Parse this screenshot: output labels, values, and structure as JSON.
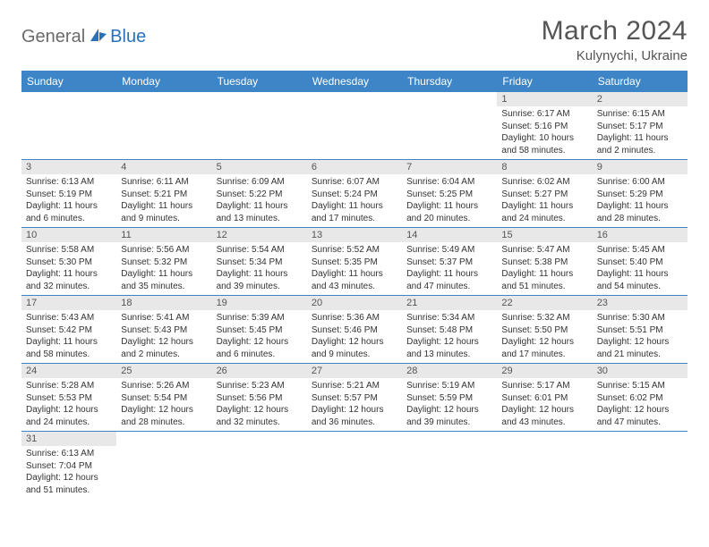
{
  "brand": {
    "name_a": "General",
    "name_b": "Blue"
  },
  "header": {
    "title": "March 2024",
    "location": "Kulynychi, Ukraine"
  },
  "colors": {
    "header_bg": "#3d85c6",
    "header_fg": "#ffffff",
    "rule": "#3d85c6",
    "daynum_bg": "#e8e8e8",
    "text": "#555555"
  },
  "weekdays": [
    "Sunday",
    "Monday",
    "Tuesday",
    "Wednesday",
    "Thursday",
    "Friday",
    "Saturday"
  ],
  "weeks": [
    [
      null,
      null,
      null,
      null,
      null,
      {
        "n": "1",
        "sr": "Sunrise: 6:17 AM",
        "ss": "Sunset: 5:16 PM",
        "dl1": "Daylight: 10 hours",
        "dl2": "and 58 minutes."
      },
      {
        "n": "2",
        "sr": "Sunrise: 6:15 AM",
        "ss": "Sunset: 5:17 PM",
        "dl1": "Daylight: 11 hours",
        "dl2": "and 2 minutes."
      }
    ],
    [
      {
        "n": "3",
        "sr": "Sunrise: 6:13 AM",
        "ss": "Sunset: 5:19 PM",
        "dl1": "Daylight: 11 hours",
        "dl2": "and 6 minutes."
      },
      {
        "n": "4",
        "sr": "Sunrise: 6:11 AM",
        "ss": "Sunset: 5:21 PM",
        "dl1": "Daylight: 11 hours",
        "dl2": "and 9 minutes."
      },
      {
        "n": "5",
        "sr": "Sunrise: 6:09 AM",
        "ss": "Sunset: 5:22 PM",
        "dl1": "Daylight: 11 hours",
        "dl2": "and 13 minutes."
      },
      {
        "n": "6",
        "sr": "Sunrise: 6:07 AM",
        "ss": "Sunset: 5:24 PM",
        "dl1": "Daylight: 11 hours",
        "dl2": "and 17 minutes."
      },
      {
        "n": "7",
        "sr": "Sunrise: 6:04 AM",
        "ss": "Sunset: 5:25 PM",
        "dl1": "Daylight: 11 hours",
        "dl2": "and 20 minutes."
      },
      {
        "n": "8",
        "sr": "Sunrise: 6:02 AM",
        "ss": "Sunset: 5:27 PM",
        "dl1": "Daylight: 11 hours",
        "dl2": "and 24 minutes."
      },
      {
        "n": "9",
        "sr": "Sunrise: 6:00 AM",
        "ss": "Sunset: 5:29 PM",
        "dl1": "Daylight: 11 hours",
        "dl2": "and 28 minutes."
      }
    ],
    [
      {
        "n": "10",
        "sr": "Sunrise: 5:58 AM",
        "ss": "Sunset: 5:30 PM",
        "dl1": "Daylight: 11 hours",
        "dl2": "and 32 minutes."
      },
      {
        "n": "11",
        "sr": "Sunrise: 5:56 AM",
        "ss": "Sunset: 5:32 PM",
        "dl1": "Daylight: 11 hours",
        "dl2": "and 35 minutes."
      },
      {
        "n": "12",
        "sr": "Sunrise: 5:54 AM",
        "ss": "Sunset: 5:34 PM",
        "dl1": "Daylight: 11 hours",
        "dl2": "and 39 minutes."
      },
      {
        "n": "13",
        "sr": "Sunrise: 5:52 AM",
        "ss": "Sunset: 5:35 PM",
        "dl1": "Daylight: 11 hours",
        "dl2": "and 43 minutes."
      },
      {
        "n": "14",
        "sr": "Sunrise: 5:49 AM",
        "ss": "Sunset: 5:37 PM",
        "dl1": "Daylight: 11 hours",
        "dl2": "and 47 minutes."
      },
      {
        "n": "15",
        "sr": "Sunrise: 5:47 AM",
        "ss": "Sunset: 5:38 PM",
        "dl1": "Daylight: 11 hours",
        "dl2": "and 51 minutes."
      },
      {
        "n": "16",
        "sr": "Sunrise: 5:45 AM",
        "ss": "Sunset: 5:40 PM",
        "dl1": "Daylight: 11 hours",
        "dl2": "and 54 minutes."
      }
    ],
    [
      {
        "n": "17",
        "sr": "Sunrise: 5:43 AM",
        "ss": "Sunset: 5:42 PM",
        "dl1": "Daylight: 11 hours",
        "dl2": "and 58 minutes."
      },
      {
        "n": "18",
        "sr": "Sunrise: 5:41 AM",
        "ss": "Sunset: 5:43 PM",
        "dl1": "Daylight: 12 hours",
        "dl2": "and 2 minutes."
      },
      {
        "n": "19",
        "sr": "Sunrise: 5:39 AM",
        "ss": "Sunset: 5:45 PM",
        "dl1": "Daylight: 12 hours",
        "dl2": "and 6 minutes."
      },
      {
        "n": "20",
        "sr": "Sunrise: 5:36 AM",
        "ss": "Sunset: 5:46 PM",
        "dl1": "Daylight: 12 hours",
        "dl2": "and 9 minutes."
      },
      {
        "n": "21",
        "sr": "Sunrise: 5:34 AM",
        "ss": "Sunset: 5:48 PM",
        "dl1": "Daylight: 12 hours",
        "dl2": "and 13 minutes."
      },
      {
        "n": "22",
        "sr": "Sunrise: 5:32 AM",
        "ss": "Sunset: 5:50 PM",
        "dl1": "Daylight: 12 hours",
        "dl2": "and 17 minutes."
      },
      {
        "n": "23",
        "sr": "Sunrise: 5:30 AM",
        "ss": "Sunset: 5:51 PM",
        "dl1": "Daylight: 12 hours",
        "dl2": "and 21 minutes."
      }
    ],
    [
      {
        "n": "24",
        "sr": "Sunrise: 5:28 AM",
        "ss": "Sunset: 5:53 PM",
        "dl1": "Daylight: 12 hours",
        "dl2": "and 24 minutes."
      },
      {
        "n": "25",
        "sr": "Sunrise: 5:26 AM",
        "ss": "Sunset: 5:54 PM",
        "dl1": "Daylight: 12 hours",
        "dl2": "and 28 minutes."
      },
      {
        "n": "26",
        "sr": "Sunrise: 5:23 AM",
        "ss": "Sunset: 5:56 PM",
        "dl1": "Daylight: 12 hours",
        "dl2": "and 32 minutes."
      },
      {
        "n": "27",
        "sr": "Sunrise: 5:21 AM",
        "ss": "Sunset: 5:57 PM",
        "dl1": "Daylight: 12 hours",
        "dl2": "and 36 minutes."
      },
      {
        "n": "28",
        "sr": "Sunrise: 5:19 AM",
        "ss": "Sunset: 5:59 PM",
        "dl1": "Daylight: 12 hours",
        "dl2": "and 39 minutes."
      },
      {
        "n": "29",
        "sr": "Sunrise: 5:17 AM",
        "ss": "Sunset: 6:01 PM",
        "dl1": "Daylight: 12 hours",
        "dl2": "and 43 minutes."
      },
      {
        "n": "30",
        "sr": "Sunrise: 5:15 AM",
        "ss": "Sunset: 6:02 PM",
        "dl1": "Daylight: 12 hours",
        "dl2": "and 47 minutes."
      }
    ],
    [
      {
        "n": "31",
        "sr": "Sunrise: 6:13 AM",
        "ss": "Sunset: 7:04 PM",
        "dl1": "Daylight: 12 hours",
        "dl2": "and 51 minutes."
      },
      null,
      null,
      null,
      null,
      null,
      null
    ]
  ]
}
